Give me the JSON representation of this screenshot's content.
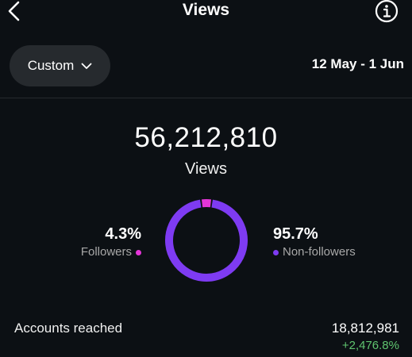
{
  "header": {
    "title": "Views",
    "back_icon": "chevron-left-icon",
    "info_icon": "info-icon"
  },
  "filter": {
    "range_label": "Custom",
    "date_range": "12 May - 1 Jun"
  },
  "summary": {
    "total": "56,212,810",
    "total_label": "Views"
  },
  "breakdown": {
    "followers": {
      "percent": "4.3%",
      "label": "Followers",
      "value": 4.3,
      "color": "#e535d8"
    },
    "non_followers": {
      "percent": "95.7%",
      "label": "Non-followers",
      "value": 95.7,
      "color": "#7e3bf2"
    }
  },
  "accounts_reached": {
    "label": "Accounts reached",
    "value": "18,812,981",
    "change": "+2,476.8%"
  },
  "colors": {
    "background": "#0c1014",
    "positive": "#5fc46f"
  }
}
